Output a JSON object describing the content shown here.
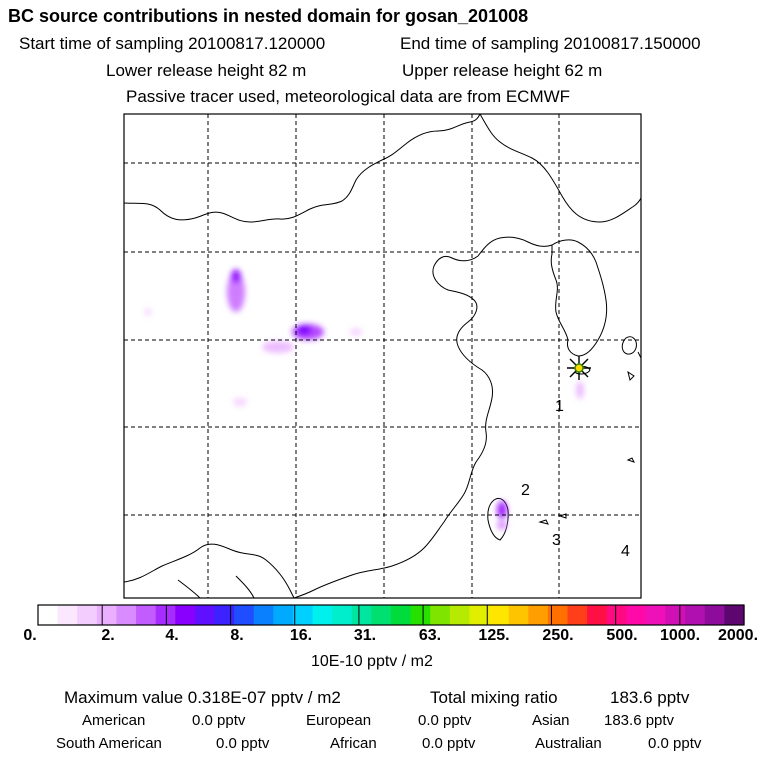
{
  "header": {
    "title": "BC  source contributions in nested domain for gosan_201008",
    "start_label": "Start time of sampling 20100817.120000",
    "end_label": "End time of sampling 20100817.150000",
    "lower_label": "Lower release height   82 m",
    "upper_label": "Upper release height   62 m",
    "tracer_note": "Passive tracer used, meteorological data are from ECMWF"
  },
  "map": {
    "region_numbers": [
      "1",
      "2",
      "3",
      "4"
    ],
    "receptor_marker": "gosan-star"
  },
  "colorbar": {
    "colors": [
      "#ffffff",
      "#fbe8ff",
      "#f4cdff",
      "#eab0ff",
      "#d98cff",
      "#c35cff",
      "#a82cff",
      "#8a00ff",
      "#5f10ff",
      "#3c22ff",
      "#1f4dff",
      "#0a80ff",
      "#00aaff",
      "#00d0ff",
      "#00f0ee",
      "#00eecc",
      "#00e6a0",
      "#00e070",
      "#00dc3c",
      "#26e000",
      "#7ee400",
      "#b6ea00",
      "#e2ee00",
      "#ffe600",
      "#ffc400",
      "#ff9e00",
      "#ff7000",
      "#ff3e1a",
      "#ff1044",
      "#ff0a80",
      "#ff0aa8",
      "#ee10b8",
      "#d010b4",
      "#b010b0",
      "#8e0c9c",
      "#5e0670"
    ],
    "tick_labels": [
      "0.",
      "2.",
      "4.",
      "8.",
      "16.",
      "31.",
      "63.",
      "125.",
      "250.",
      "500.",
      "1000.",
      "2000."
    ],
    "units": "10E-10 pptv / m2"
  },
  "summary": {
    "max_label": "Maximum value  0.318E-07 pptv / m2",
    "total_label": "Total mixing ratio",
    "total_value": "183.6 pptv",
    "sources": [
      {
        "name": "American",
        "value": "0.0 pptv"
      },
      {
        "name": "European",
        "value": "0.0 pptv"
      },
      {
        "name": "Asian",
        "value": "183.6 pptv"
      },
      {
        "name": "South American",
        "value": "0.0 pptv"
      },
      {
        "name": "African",
        "value": "0.0 pptv"
      },
      {
        "name": "Australian",
        "value": "0.0 pptv"
      }
    ]
  }
}
